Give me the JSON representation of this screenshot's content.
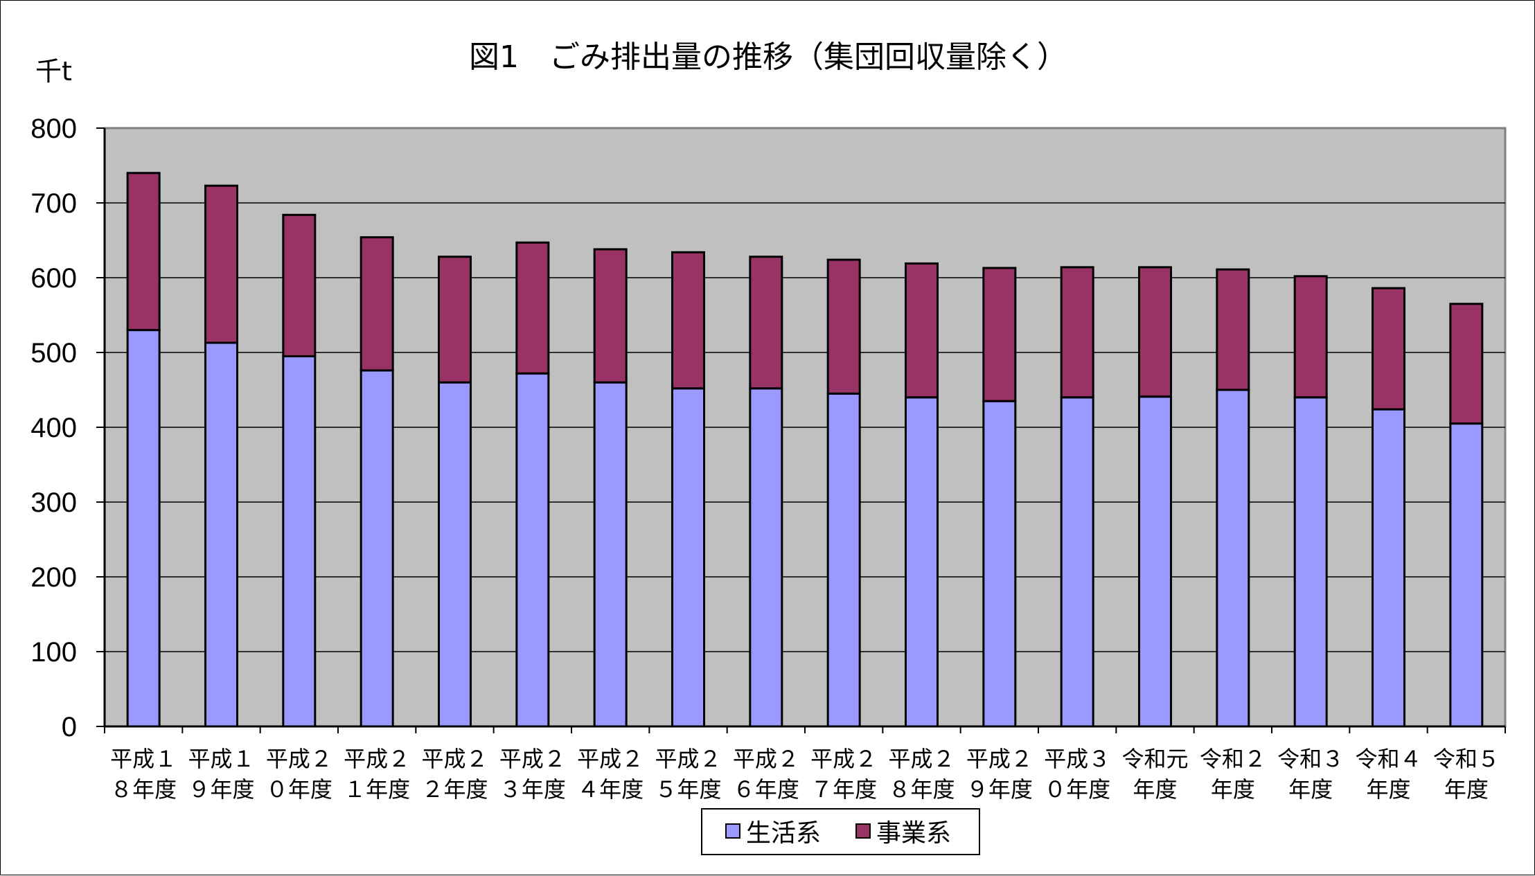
{
  "chart_data": {
    "type": "bar",
    "stacked": true,
    "title": "図1　ごみ排出量の推移（集団回収量除く）",
    "ylabel": "千t",
    "ylim": [
      0,
      800
    ],
    "yticks": [
      "0",
      "100",
      "200",
      "300",
      "400",
      "500",
      "600",
      "700",
      "800"
    ],
    "grid": true,
    "legend_position": "bottom",
    "categories": [
      [
        "平成１",
        "８年度"
      ],
      [
        "平成１",
        "９年度"
      ],
      [
        "平成２",
        "０年度"
      ],
      [
        "平成２",
        "１年度"
      ],
      [
        "平成２",
        "２年度"
      ],
      [
        "平成２",
        "３年度"
      ],
      [
        "平成２",
        "４年度"
      ],
      [
        "平成２",
        "５年度"
      ],
      [
        "平成２",
        "６年度"
      ],
      [
        "平成２",
        "７年度"
      ],
      [
        "平成２",
        "８年度"
      ],
      [
        "平成２",
        "９年度"
      ],
      [
        "平成３",
        "０年度"
      ],
      [
        "令和元",
        "年度"
      ],
      [
        "令和２",
        "年度"
      ],
      [
        "令和３",
        "年度"
      ],
      [
        "令和４",
        "年度"
      ],
      [
        "令和５",
        "年度"
      ]
    ],
    "series": [
      {
        "name": "生活系",
        "color": "#9999ff",
        "values": [
          530,
          513,
          495,
          476,
          460,
          472,
          460,
          452,
          452,
          445,
          440,
          435,
          440,
          441,
          450,
          440,
          424,
          405
        ]
      },
      {
        "name": "事業系",
        "color": "#993366",
        "values": [
          210,
          210,
          189,
          178,
          168,
          175,
          178,
          182,
          176,
          179,
          179,
          178,
          174,
          173,
          161,
          162,
          162,
          160
        ]
      }
    ]
  }
}
